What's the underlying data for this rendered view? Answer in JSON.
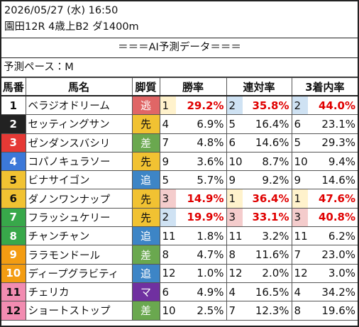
{
  "header": {
    "datetime": "2026/05/27 (水) 16:50",
    "race": "園田12R 4歳上B2 ダ1400m"
  },
  "banner": "＝＝＝AI予測データ＝＝＝",
  "pace": "予測ペース：M",
  "table": {
    "columns": [
      "馬番",
      "馬名",
      "脚質",
      "勝率",
      "連対率",
      "3着内率"
    ],
    "rows": [
      {
        "number": 1,
        "frame_color": "#ffffff",
        "name": "ベラジオドリーム",
        "style": "逃",
        "style_color": "#e06666",
        "win_rank": 1,
        "win": "29.2%",
        "place2_rank": 2,
        "place2": "35.8%",
        "place3_rank": 2,
        "place3": "44.0%"
      },
      {
        "number": 2,
        "frame_color": "#222222",
        "name": "セッティングサン",
        "style": "先",
        "style_color": "#f1c232",
        "win_rank": 4,
        "win": "6.9%",
        "place2_rank": 5,
        "place2": "16.4%",
        "place3_rank": 6,
        "place3": "23.1%"
      },
      {
        "number": 3,
        "frame_color": "#e53935",
        "name": "ゼンダンスバシリ",
        "style": "差",
        "style_color": "#6aa84f",
        "win_rank": 7,
        "win": "4.8%",
        "place2_rank": 6,
        "place2": "14.6%",
        "place3_rank": 5,
        "place3": "29.3%"
      },
      {
        "number": 4,
        "frame_color": "#3c78d8",
        "name": "コパノキュラソー",
        "style": "先",
        "style_color": "#f1c232",
        "win_rank": 9,
        "win": "3.6%",
        "place2_rank": 10,
        "place2": "8.7%",
        "place3_rank": 10,
        "place3": "9.4%"
      },
      {
        "number": 5,
        "frame_color": "#f1c232",
        "name": "ビナサイゴン",
        "style": "追",
        "style_color": "#3d85c6",
        "win_rank": 5,
        "win": "5.7%",
        "place2_rank": 9,
        "place2": "9.2%",
        "place3_rank": 9,
        "place3": "14.6%"
      },
      {
        "number": 6,
        "frame_color": "#f1c232",
        "name": "ダノンワンナップ",
        "style": "先",
        "style_color": "#f1c232",
        "win_rank": 3,
        "win": "14.9%",
        "place2_rank": 1,
        "place2": "36.4%",
        "place3_rank": 1,
        "place3": "47.6%"
      },
      {
        "number": 7,
        "frame_color": "#38a84a",
        "name": "フラッシュケリー",
        "style": "先",
        "style_color": "#f1c232",
        "win_rank": 2,
        "win": "19.9%",
        "place2_rank": 3,
        "place2": "33.1%",
        "place3_rank": 3,
        "place3": "40.8%"
      },
      {
        "number": 8,
        "frame_color": "#38a84a",
        "name": "チャンチャン",
        "style": "追",
        "style_color": "#3d85c6",
        "win_rank": 11,
        "win": "1.8%",
        "place2_rank": 11,
        "place2": "3.2%",
        "place3_rank": 11,
        "place3": "6.2%"
      },
      {
        "number": 9,
        "frame_color": "#f39c12",
        "name": "ララモンドール",
        "style": "差",
        "style_color": "#6aa84f",
        "win_rank": 8,
        "win": "4.7%",
        "place2_rank": 8,
        "place2": "11.6%",
        "place3_rank": 7,
        "place3": "23.0%"
      },
      {
        "number": 10,
        "frame_color": "#f39c12",
        "name": "ディープグラビティ",
        "style": "追",
        "style_color": "#3d85c6",
        "win_rank": 12,
        "win": "1.0%",
        "place2_rank": 12,
        "place2": "2.0%",
        "place3_rank": 12,
        "place3": "3.0%"
      },
      {
        "number": 11,
        "frame_color": "#f28cb1",
        "name": "チェリカ",
        "style": "マ",
        "style_color": "#7030a0",
        "win_rank": 6,
        "win": "4.9%",
        "place2_rank": 4,
        "place2": "16.5%",
        "place3_rank": 4,
        "place3": "34.2%"
      },
      {
        "number": 12,
        "frame_color": "#f28cb1",
        "name": "ショートストップ",
        "style": "差",
        "style_color": "#6aa84f",
        "win_rank": 10,
        "win": "2.5%",
        "place2_rank": 7,
        "place2": "12.3%",
        "place3_rank": 8,
        "place3": "19.6%"
      }
    ]
  }
}
